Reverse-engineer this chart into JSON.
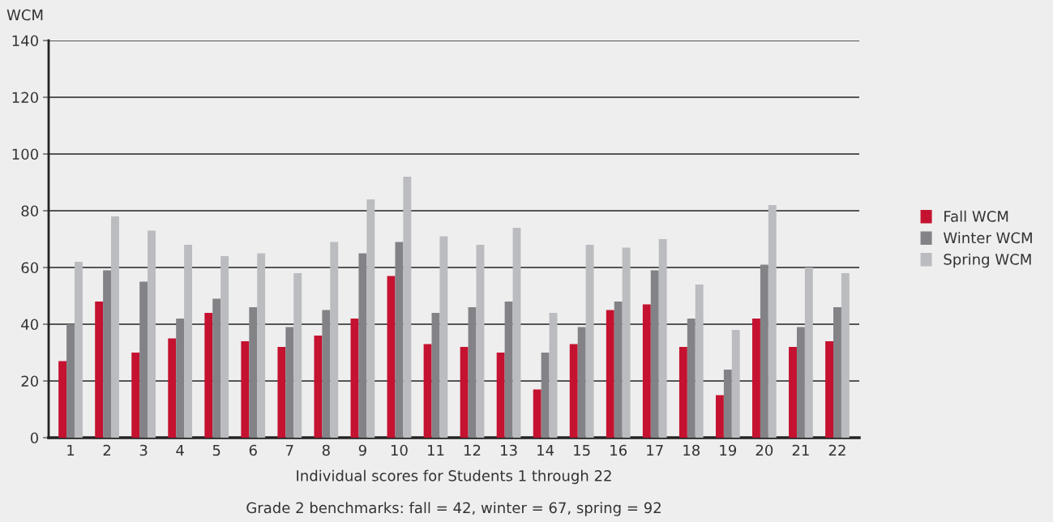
{
  "chart_data": {
    "type": "bar",
    "ylabel": "WCM",
    "xlabel": "Individual scores for Students 1 through 22",
    "annotations": [
      "Grade 2 benchmarks: fall = 42, winter = 67, spring = 92"
    ],
    "categories": [
      "1",
      "2",
      "3",
      "4",
      "5",
      "6",
      "7",
      "8",
      "9",
      "10",
      "11",
      "12",
      "13",
      "14",
      "15",
      "16",
      "17",
      "18",
      "19",
      "20",
      "21",
      "22"
    ],
    "series": [
      {
        "name": "Fall WCM",
        "color": "#c41230",
        "values": [
          27,
          48,
          30,
          35,
          44,
          34,
          32,
          36,
          42,
          57,
          33,
          32,
          30,
          17,
          33,
          45,
          47,
          32,
          15,
          42,
          32,
          34
        ]
      },
      {
        "name": "Winter WCM",
        "color": "#838387",
        "values": [
          40,
          59,
          55,
          42,
          49,
          46,
          39,
          45,
          65,
          69,
          44,
          46,
          48,
          30,
          39,
          48,
          59,
          42,
          24,
          61,
          39,
          46
        ]
      },
      {
        "name": "Spring WCM",
        "color": "#bbbcbf",
        "values": [
          62,
          78,
          73,
          68,
          64,
          65,
          58,
          69,
          84,
          92,
          71,
          68,
          74,
          44,
          68,
          67,
          70,
          54,
          38,
          82,
          60,
          58
        ]
      }
    ],
    "ylim": [
      0,
      140
    ],
    "yticks": [
      0,
      20,
      40,
      60,
      80,
      100,
      120,
      140
    ],
    "grid": "y",
    "legend": "right"
  }
}
